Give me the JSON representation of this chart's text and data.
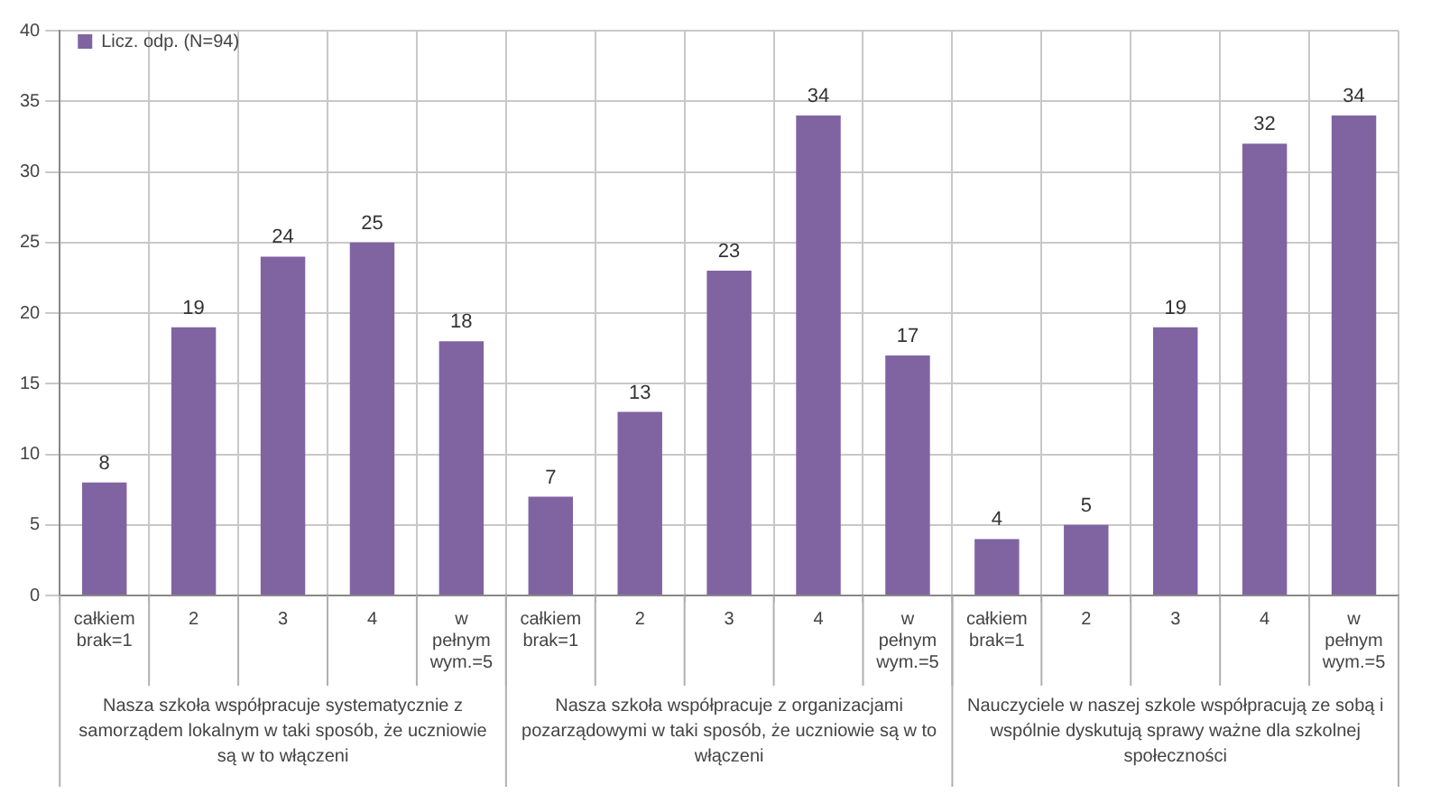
{
  "chart_data": {
    "type": "bar",
    "categories": [
      "całkiem brak=1",
      "2",
      "3",
      "4",
      "w pełnym wym.=5",
      "całkiem brak=1",
      "2",
      "3",
      "4",
      "w pełnym wym.=5",
      "całkiem brak=1",
      "2",
      "3",
      "4",
      "w pełnym wym.=5"
    ],
    "series": [
      {
        "name": "Licz. odp. (N=94)",
        "color": "#8064a2",
        "values": [
          8,
          19,
          24,
          25,
          18,
          7,
          13,
          23,
          34,
          17,
          4,
          5,
          19,
          32,
          34
        ]
      }
    ],
    "annotations": [
      "Nasza szkoła współpracuje systematycznie z samorządem lokalnym w taki sposób, że uczniowie są w to włączeni",
      "Nasza szkoła współpracuje z organizacjami pozarządowymi w taki sposób, że uczniowie są w to włączeni",
      "Nauczyciele w naszej szkole współpracują ze sobą i wspólnie dyskutują sprawy ważne dla szkolnej społeczności"
    ],
    "ylim": [
      0,
      40
    ],
    "yticks": [
      0,
      5,
      10,
      15,
      20,
      25,
      30,
      35,
      40
    ],
    "grid": true,
    "legend": "top left",
    "data_labels": true
  }
}
